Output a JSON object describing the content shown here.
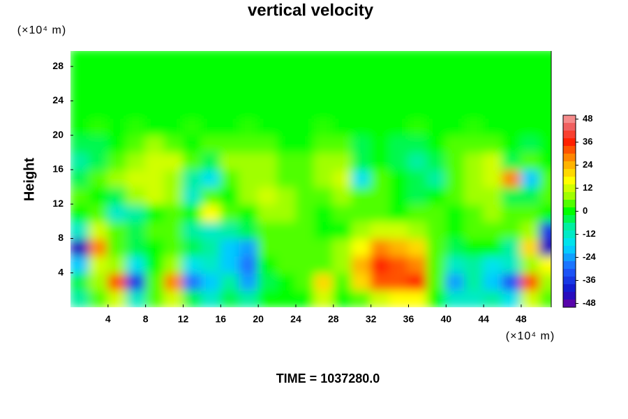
{
  "chart_data": {
    "type": "contour",
    "title": "vertical velocity",
    "ylabel": "Height",
    "yunit": "(×10⁴ m)",
    "xunit": "(×10⁴ m)",
    "footer": "TIME = 1037280.0",
    "xlim": [
      0,
      51.2
    ],
    "ylim": [
      0,
      29.8
    ],
    "xticks": [
      4,
      8,
      12,
      16,
      20,
      24,
      28,
      32,
      36,
      40,
      44,
      48
    ],
    "yticks": [
      4,
      8,
      12,
      16,
      20,
      24,
      28
    ],
    "x": [
      1,
      3,
      5,
      7,
      9,
      11,
      13,
      15,
      17,
      19,
      21,
      23,
      25,
      27,
      29,
      31,
      33,
      35,
      37,
      39,
      41,
      43,
      45,
      47,
      49,
      51
    ],
    "y": [
      1,
      3,
      5,
      7,
      9,
      11,
      13,
      15,
      17,
      19,
      21,
      23,
      25,
      27,
      29
    ],
    "z": [
      [
        -8,
        4,
        12,
        -12,
        4,
        12,
        -4,
        -12,
        -4,
        -8,
        0,
        0,
        0,
        12,
        0,
        4,
        12,
        16,
        16,
        0,
        -12,
        -12,
        -8,
        -16,
        12,
        4
      ],
      [
        -4,
        8,
        32,
        -36,
        4,
        28,
        -28,
        -20,
        -8,
        -24,
        -4,
        0,
        4,
        20,
        4,
        20,
        32,
        32,
        36,
        4,
        -24,
        -8,
        -20,
        -32,
        32,
        8
      ],
      [
        -20,
        12,
        8,
        -16,
        0,
        8,
        -16,
        -12,
        -20,
        -28,
        0,
        4,
        4,
        4,
        8,
        24,
        36,
        32,
        28,
        4,
        -12,
        -8,
        -16,
        -12,
        8,
        16
      ],
      [
        -44,
        28,
        4,
        -4,
        0,
        4,
        -4,
        -8,
        -20,
        -24,
        4,
        4,
        4,
        4,
        8,
        16,
        28,
        24,
        20,
        4,
        -4,
        0,
        0,
        -8,
        20,
        -44
      ],
      [
        -12,
        12,
        4,
        -4,
        4,
        4,
        -8,
        -12,
        -8,
        -4,
        4,
        4,
        4,
        0,
        0,
        8,
        12,
        12,
        8,
        4,
        0,
        4,
        4,
        4,
        8,
        -36
      ],
      [
        0,
        4,
        -12,
        -8,
        0,
        4,
        0,
        16,
        4,
        0,
        8,
        8,
        4,
        0,
        4,
        4,
        4,
        0,
        4,
        4,
        0,
        4,
        8,
        4,
        4,
        0
      ],
      [
        4,
        0,
        -4,
        8,
        12,
        8,
        -12,
        4,
        0,
        8,
        12,
        8,
        4,
        4,
        8,
        4,
        4,
        0,
        -4,
        0,
        4,
        8,
        8,
        -4,
        -4,
        4
      ],
      [
        -4,
        4,
        8,
        12,
        12,
        8,
        -8,
        -16,
        4,
        8,
        8,
        4,
        4,
        8,
        12,
        -16,
        4,
        0,
        -4,
        -8,
        4,
        8,
        12,
        28,
        -20,
        4
      ],
      [
        -8,
        -4,
        4,
        8,
        12,
        12,
        4,
        -4,
        8,
        8,
        8,
        4,
        4,
        8,
        8,
        -4,
        0,
        -4,
        -8,
        -4,
        4,
        8,
        12,
        -4,
        4,
        0
      ],
      [
        -4,
        -4,
        0,
        4,
        8,
        4,
        0,
        4,
        4,
        4,
        4,
        0,
        0,
        4,
        4,
        -4,
        0,
        -4,
        -4,
        0,
        4,
        4,
        4,
        0,
        -4,
        0
      ],
      [
        0,
        2,
        0,
        2,
        0,
        0,
        2,
        0,
        0,
        2,
        0,
        0,
        0,
        2,
        0,
        0,
        0,
        0,
        2,
        0,
        0,
        2,
        0,
        0,
        0,
        0
      ],
      [
        0,
        0,
        0,
        0,
        0,
        0,
        0,
        0,
        0,
        0,
        0,
        0,
        0,
        0,
        0,
        0,
        0,
        0,
        0,
        0,
        0,
        0,
        0,
        0,
        0,
        0
      ],
      [
        0,
        0,
        0,
        0,
        0,
        0,
        0,
        0,
        0,
        0,
        0,
        0,
        0,
        0,
        0,
        0,
        0,
        0,
        0,
        0,
        0,
        0,
        0,
        0,
        0,
        0
      ],
      [
        0,
        0,
        0,
        0,
        0,
        0,
        0,
        0,
        0,
        0,
        0,
        0,
        0,
        0,
        0,
        0,
        0,
        0,
        0,
        0,
        0,
        0,
        0,
        0,
        0,
        0
      ],
      [
        0,
        0,
        0,
        0,
        0,
        0,
        0,
        0,
        0,
        0,
        0,
        0,
        0,
        0,
        0,
        0,
        0,
        0,
        0,
        0,
        0,
        0,
        0,
        0,
        0,
        0
      ]
    ],
    "clim": [
      -50,
      50
    ],
    "level_step": 4,
    "cticks": [
      48,
      36,
      24,
      12,
      0,
      -12,
      -24,
      -36,
      -48
    ],
    "colorscale": [
      [
        -50,
        "#7000a0"
      ],
      [
        -42,
        "#1010c8"
      ],
      [
        -30,
        "#2060ff"
      ],
      [
        -18,
        "#00e0ff"
      ],
      [
        -8,
        "#00f0a0"
      ],
      [
        0,
        "#00ff00"
      ],
      [
        8,
        "#a0ff00"
      ],
      [
        16,
        "#ffff00"
      ],
      [
        26,
        "#ffa000"
      ],
      [
        36,
        "#ff2000"
      ],
      [
        44,
        "#f06060"
      ],
      [
        50,
        "#f8a0a0"
      ]
    ]
  }
}
